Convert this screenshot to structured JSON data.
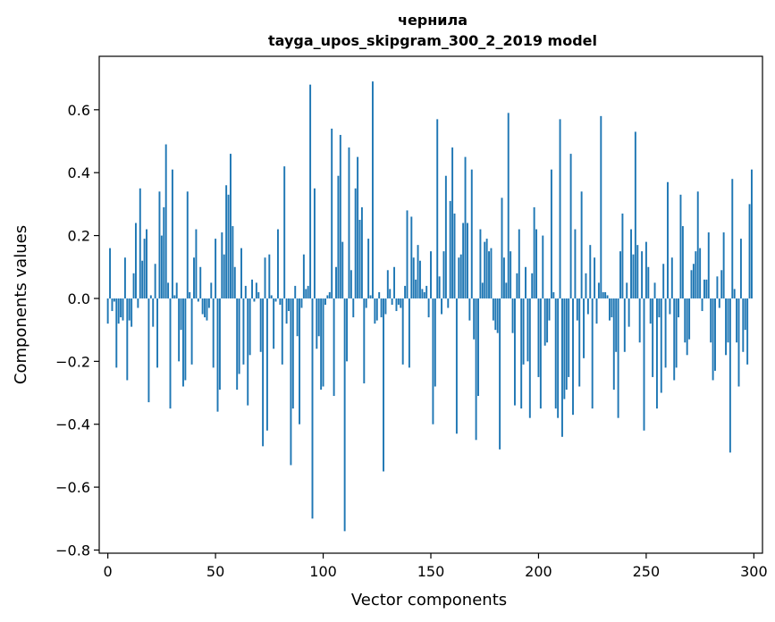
{
  "chart_data": {
    "type": "bar",
    "title": "чернила",
    "subtitle": "tayga_upos_skipgram_300_2_2019 model",
    "xlabel": "Vector components",
    "ylabel": "Components values",
    "xlim": [
      -4,
      304
    ],
    "ylim": [
      -0.81,
      0.77
    ],
    "xticks": [
      0,
      50,
      100,
      150,
      200,
      250,
      300
    ],
    "yticks": [
      -0.8,
      -0.6,
      -0.4,
      -0.2,
      0.0,
      0.2,
      0.4,
      0.6
    ],
    "ytick_labels": [
      "−0.8",
      "−0.6",
      "−0.4",
      "−0.2",
      "0.0",
      "0.2",
      "0.4",
      "0.6"
    ],
    "xtick_labels": [
      "0",
      "50",
      "100",
      "150",
      "200",
      "250",
      "300"
    ],
    "bar_color": "#1f77b4",
    "grid": false,
    "values": [
      -0.08,
      0.16,
      -0.04,
      -0.01,
      -0.22,
      -0.08,
      -0.06,
      -0.07,
      0.13,
      -0.26,
      -0.07,
      -0.09,
      0.08,
      0.24,
      -0.03,
      0.35,
      0.12,
      0.19,
      0.22,
      -0.33,
      0.01,
      -0.09,
      0.11,
      -0.22,
      0.34,
      0.2,
      0.29,
      0.49,
      0.05,
      -0.35,
      0.41,
      0.01,
      0.05,
      -0.2,
      -0.1,
      -0.28,
      -0.26,
      0.34,
      0.02,
      -0.21,
      0.13,
      0.22,
      -0.01,
      0.1,
      -0.05,
      -0.06,
      -0.07,
      -0.03,
      0.05,
      -0.22,
      0.19,
      -0.36,
      -0.29,
      0.21,
      0.14,
      0.36,
      0.33,
      0.46,
      0.23,
      0.1,
      -0.29,
      -0.24,
      0.16,
      -0.21,
      0.04,
      -0.34,
      -0.18,
      0.06,
      -0.01,
      0.05,
      0.02,
      -0.17,
      -0.47,
      0.13,
      -0.42,
      0.14,
      0.01,
      -0.16,
      -0.01,
      0.22,
      -0.02,
      -0.21,
      0.42,
      -0.08,
      -0.04,
      -0.53,
      -0.35,
      0.04,
      -0.12,
      -0.4,
      -0.03,
      0.14,
      0.03,
      0.04,
      0.68,
      -0.7,
      0.35,
      -0.16,
      -0.12,
      -0.29,
      -0.28,
      -0.02,
      0.01,
      0.02,
      0.54,
      -0.31,
      0.1,
      0.39,
      0.52,
      0.18,
      -0.74,
      -0.2,
      0.48,
      0.09,
      -0.06,
      0.35,
      0.45,
      0.25,
      0.29,
      -0.27,
      -0.03,
      0.19,
      0.01,
      0.69,
      -0.08,
      -0.07,
      0.02,
      -0.06,
      -0.55,
      -0.05,
      0.09,
      0.03,
      -0.02,
      0.1,
      -0.04,
      -0.02,
      -0.03,
      -0.21,
      0.04,
      0.28,
      -0.22,
      0.26,
      0.13,
      0.06,
      0.17,
      0.12,
      0.03,
      0.02,
      0.04,
      -0.06,
      0.15,
      -0.4,
      -0.28,
      0.57,
      0.07,
      -0.05,
      0.15,
      0.39,
      -0.03,
      0.31,
      0.48,
      0.27,
      -0.43,
      0.13,
      0.14,
      0.24,
      0.45,
      0.24,
      -0.07,
      0.41,
      -0.13,
      -0.45,
      -0.31,
      0.22,
      0.05,
      0.18,
      0.19,
      0.15,
      0.16,
      -0.07,
      -0.1,
      -0.11,
      -0.48,
      0.32,
      0.13,
      0.05,
      0.59,
      0.15,
      -0.11,
      -0.34,
      0.08,
      0.22,
      -0.35,
      -0.21,
      0.1,
      -0.2,
      -0.38,
      0.08,
      0.29,
      0.22,
      -0.25,
      -0.35,
      0.2,
      -0.15,
      -0.14,
      -0.07,
      0.41,
      0.02,
      -0.35,
      -0.38,
      0.57,
      -0.44,
      -0.32,
      -0.29,
      -0.25,
      0.46,
      -0.37,
      0.22,
      -0.07,
      -0.28,
      0.34,
      -0.19,
      0.08,
      -0.05,
      0.17,
      -0.35,
      0.13,
      -0.08,
      0.05,
      0.58,
      0.02,
      0.02,
      0.01,
      -0.07,
      -0.06,
      -0.29,
      -0.17,
      -0.38,
      0.15,
      0.27,
      -0.17,
      0.05,
      -0.09,
      0.22,
      0.14,
      0.53,
      0.17,
      -0.14,
      0.15,
      -0.42,
      0.18,
      0.1,
      -0.08,
      -0.25,
      0.05,
      -0.35,
      -0.06,
      -0.3,
      0.11,
      -0.22,
      0.37,
      -0.05,
      0.13,
      -0.26,
      -0.22,
      -0.06,
      0.33,
      0.23,
      -0.14,
      -0.18,
      -0.13,
      0.09,
      0.11,
      0.15,
      0.34,
      0.16,
      -0.04,
      0.06,
      0.06,
      0.21,
      -0.14,
      -0.26,
      -0.23,
      0.07,
      -0.03,
      0.09,
      0.21,
      -0.18,
      -0.14,
      -0.49,
      0.38,
      0.03,
      -0.14,
      -0.28,
      0.19,
      -0.17,
      -0.1,
      -0.21,
      0.3,
      0.41
    ]
  }
}
